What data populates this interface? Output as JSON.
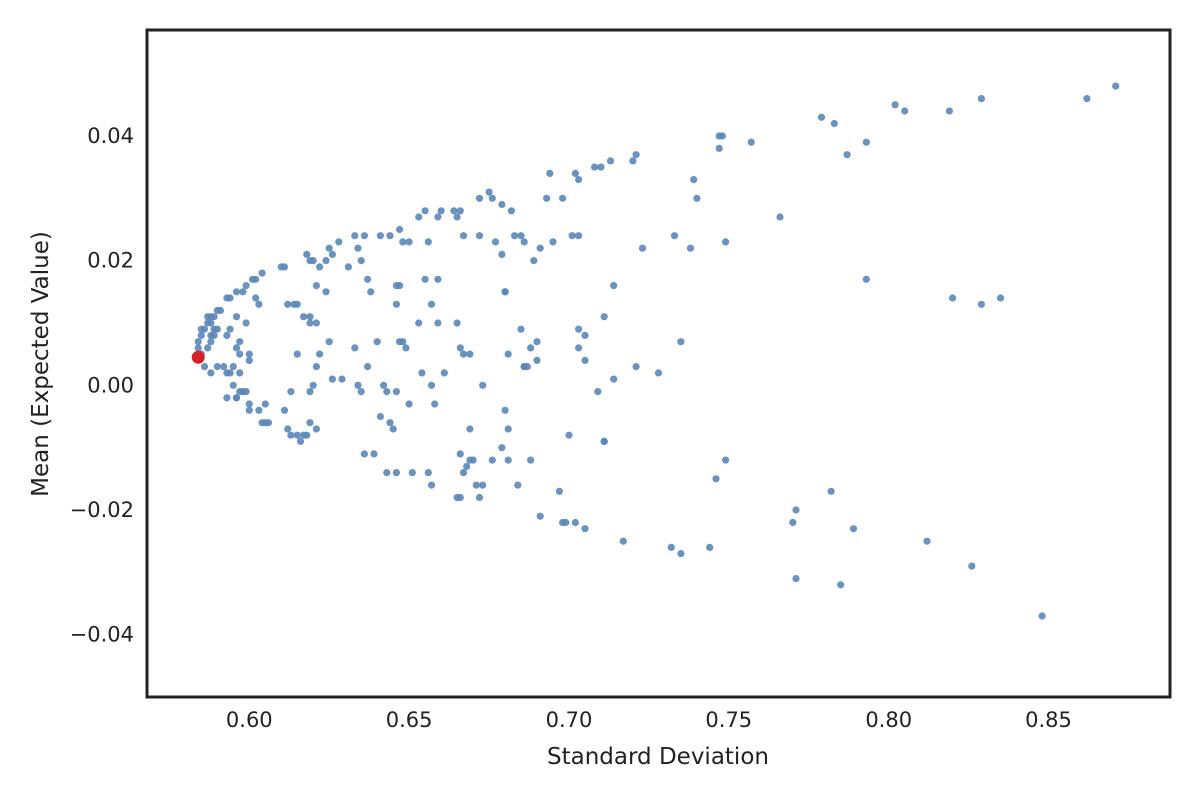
{
  "chart_data": {
    "type": "scatter",
    "title": "",
    "xlabel": "Standard Deviation",
    "ylabel": "Mean (Expected Value)",
    "xlim": [
      0.568,
      0.888
    ],
    "ylim": [
      -0.05,
      0.057
    ],
    "x_ticks": [
      0.6,
      0.65,
      0.7,
      0.75,
      0.8,
      0.85
    ],
    "x_tick_labels": [
      "0.60",
      "0.65",
      "0.70",
      "0.75",
      "0.80",
      "0.85"
    ],
    "y_ticks": [
      -0.04,
      -0.02,
      0.0,
      0.02,
      0.04
    ],
    "y_tick_labels": [
      "−0.04",
      "−0.02",
      "0.00",
      "0.02",
      "0.04"
    ],
    "grid": false,
    "legend": "none",
    "colors": {
      "points": "#5b87b8",
      "highlight": "#d62027",
      "frame": "#222222",
      "text": "#222222"
    },
    "series": [
      {
        "values": [
          [
            0.871,
            0.048
          ],
          [
            0.862,
            0.046
          ],
          [
            0.829,
            0.046
          ],
          [
            0.819,
            0.044
          ],
          [
            0.805,
            0.044
          ],
          [
            0.802,
            0.045
          ],
          [
            0.779,
            0.043
          ],
          [
            0.783,
            0.042
          ],
          [
            0.787,
            0.037
          ],
          [
            0.793,
            0.039
          ],
          [
            0.757,
            0.039
          ],
          [
            0.747,
            0.04
          ],
          [
            0.748,
            0.04
          ],
          [
            0.747,
            0.038
          ],
          [
            0.721,
            0.037
          ],
          [
            0.72,
            0.036
          ],
          [
            0.713,
            0.036
          ],
          [
            0.71,
            0.035
          ],
          [
            0.708,
            0.035
          ],
          [
            0.702,
            0.034
          ],
          [
            0.703,
            0.033
          ],
          [
            0.694,
            0.034
          ],
          [
            0.739,
            0.033
          ],
          [
            0.74,
            0.03
          ],
          [
            0.766,
            0.027
          ],
          [
            0.698,
            0.03
          ],
          [
            0.693,
            0.03
          ],
          [
            0.682,
            0.028
          ],
          [
            0.679,
            0.029
          ],
          [
            0.675,
            0.031
          ],
          [
            0.676,
            0.03
          ],
          [
            0.672,
            0.03
          ],
          [
            0.666,
            0.028
          ],
          [
            0.664,
            0.028
          ],
          [
            0.665,
            0.027
          ],
          [
            0.66,
            0.028
          ],
          [
            0.659,
            0.027
          ],
          [
            0.655,
            0.028
          ],
          [
            0.653,
            0.027
          ],
          [
            0.683,
            0.024
          ],
          [
            0.685,
            0.024
          ],
          [
            0.686,
            0.023
          ],
          [
            0.691,
            0.022
          ],
          [
            0.695,
            0.023
          ],
          [
            0.701,
            0.024
          ],
          [
            0.703,
            0.024
          ],
          [
            0.667,
            0.024
          ],
          [
            0.672,
            0.024
          ],
          [
            0.677,
            0.023
          ],
          [
            0.679,
            0.021
          ],
          [
            0.689,
            0.02
          ],
          [
            0.723,
            0.022
          ],
          [
            0.733,
            0.024
          ],
          [
            0.738,
            0.022
          ],
          [
            0.749,
            0.023
          ],
          [
            0.656,
            0.023
          ],
          [
            0.647,
            0.025
          ],
          [
            0.648,
            0.023
          ],
          [
            0.65,
            0.023
          ],
          [
            0.644,
            0.024
          ],
          [
            0.641,
            0.024
          ],
          [
            0.636,
            0.024
          ],
          [
            0.633,
            0.024
          ],
          [
            0.634,
            0.022
          ],
          [
            0.635,
            0.02
          ],
          [
            0.628,
            0.023
          ],
          [
            0.625,
            0.022
          ],
          [
            0.626,
            0.021
          ],
          [
            0.624,
            0.02
          ],
          [
            0.62,
            0.02
          ],
          [
            0.618,
            0.021
          ],
          [
            0.619,
            0.02
          ],
          [
            0.622,
            0.019
          ],
          [
            0.631,
            0.019
          ],
          [
            0.611,
            0.019
          ],
          [
            0.61,
            0.019
          ],
          [
            0.604,
            0.018
          ],
          [
            0.602,
            0.017
          ],
          [
            0.601,
            0.017
          ],
          [
            0.599,
            0.016
          ],
          [
            0.637,
            0.017
          ],
          [
            0.638,
            0.015
          ],
          [
            0.646,
            0.016
          ],
          [
            0.647,
            0.016
          ],
          [
            0.655,
            0.017
          ],
          [
            0.659,
            0.017
          ],
          [
            0.68,
            0.015
          ],
          [
            0.68,
            0.015
          ],
          [
            0.714,
            0.016
          ],
          [
            0.793,
            0.017
          ],
          [
            0.82,
            0.014
          ],
          [
            0.829,
            0.013
          ],
          [
            0.835,
            0.014
          ],
          [
            0.621,
            0.016
          ],
          [
            0.624,
            0.015
          ],
          [
            0.614,
            0.013
          ],
          [
            0.615,
            0.013
          ],
          [
            0.612,
            0.013
          ],
          [
            0.602,
            0.014
          ],
          [
            0.603,
            0.013
          ],
          [
            0.598,
            0.015
          ],
          [
            0.596,
            0.015
          ],
          [
            0.594,
            0.014
          ],
          [
            0.593,
            0.014
          ],
          [
            0.591,
            0.012
          ],
          [
            0.59,
            0.012
          ],
          [
            0.589,
            0.011
          ],
          [
            0.588,
            0.011
          ],
          [
            0.587,
            0.01
          ],
          [
            0.586,
            0.009
          ],
          [
            0.585,
            0.009
          ],
          [
            0.585,
            0.008
          ],
          [
            0.584,
            0.007
          ],
          [
            0.584,
            0.006
          ],
          [
            0.585,
            0.005
          ],
          [
            0.587,
            0.011
          ],
          [
            0.588,
            0.01
          ],
          [
            0.589,
            0.009
          ],
          [
            0.59,
            0.009
          ],
          [
            0.588,
            0.008
          ],
          [
            0.588,
            0.007
          ],
          [
            0.587,
            0.006
          ],
          [
            0.589,
            0.008
          ],
          [
            0.593,
            0.008
          ],
          [
            0.594,
            0.009
          ],
          [
            0.596,
            0.011
          ],
          [
            0.599,
            0.01
          ],
          [
            0.597,
            0.007
          ],
          [
            0.596,
            0.006
          ],
          [
            0.597,
            0.005
          ],
          [
            0.6,
            0.005
          ],
          [
            0.6,
            0.004
          ],
          [
            0.617,
            0.011
          ],
          [
            0.619,
            0.011
          ],
          [
            0.621,
            0.01
          ],
          [
            0.619,
            0.01
          ],
          [
            0.615,
            0.005
          ],
          [
            0.621,
            0.003
          ],
          [
            0.622,
            0.005
          ],
          [
            0.625,
            0.007
          ],
          [
            0.633,
            0.006
          ],
          [
            0.64,
            0.007
          ],
          [
            0.646,
            0.013
          ],
          [
            0.647,
            0.007
          ],
          [
            0.648,
            0.007
          ],
          [
            0.649,
            0.006
          ],
          [
            0.653,
            0.01
          ],
          [
            0.657,
            0.013
          ],
          [
            0.659,
            0.01
          ],
          [
            0.665,
            0.01
          ],
          [
            0.666,
            0.006
          ],
          [
            0.667,
            0.005
          ],
          [
            0.669,
            0.005
          ],
          [
            0.685,
            0.009
          ],
          [
            0.687,
            0.003
          ],
          [
            0.688,
            0.006
          ],
          [
            0.681,
            0.005
          ],
          [
            0.69,
            0.007
          ],
          [
            0.69,
            0.004
          ],
          [
            0.686,
            0.003
          ],
          [
            0.703,
            0.009
          ],
          [
            0.705,
            0.008
          ],
          [
            0.703,
            0.006
          ],
          [
            0.705,
            0.004
          ],
          [
            0.711,
            0.011
          ],
          [
            0.721,
            0.003
          ],
          [
            0.728,
            0.002
          ],
          [
            0.735,
            0.007
          ],
          [
            0.714,
            0.001
          ],
          [
            0.709,
            -0.001
          ],
          [
            0.686,
            0.003
          ],
          [
            0.673,
            0.0
          ],
          [
            0.661,
            0.002
          ],
          [
            0.654,
            0.002
          ],
          [
            0.657,
            0.0
          ],
          [
            0.658,
            -0.003
          ],
          [
            0.65,
            -0.003
          ],
          [
            0.646,
            -0.001
          ],
          [
            0.643,
            -0.001
          ],
          [
            0.642,
            0.0
          ],
          [
            0.637,
            0.003
          ],
          [
            0.634,
            0.0
          ],
          [
            0.635,
            -0.001
          ],
          [
            0.629,
            0.001
          ],
          [
            0.626,
            0.001
          ],
          [
            0.62,
            0.0
          ],
          [
            0.619,
            -0.001
          ],
          [
            0.613,
            -0.001
          ],
          [
            0.605,
            -0.003
          ],
          [
            0.603,
            -0.004
          ],
          [
            0.6,
            -0.003
          ],
          [
            0.6,
            -0.004
          ],
          [
            0.599,
            -0.001
          ],
          [
            0.597,
            -0.001
          ],
          [
            0.596,
            -0.002
          ],
          [
            0.595,
            0.0
          ],
          [
            0.593,
            0.002
          ],
          [
            0.592,
            0.003
          ],
          [
            0.594,
            0.002
          ],
          [
            0.595,
            0.003
          ],
          [
            0.597,
            0.002
          ],
          [
            0.593,
            -0.002
          ],
          [
            0.596,
            -0.002
          ],
          [
            0.598,
            -0.001
          ],
          [
            0.59,
            0.003
          ],
          [
            0.588,
            0.002
          ],
          [
            0.586,
            0.003
          ],
          [
            0.604,
            -0.006
          ],
          [
            0.605,
            -0.006
          ],
          [
            0.606,
            -0.006
          ],
          [
            0.611,
            -0.004
          ],
          [
            0.612,
            -0.007
          ],
          [
            0.613,
            -0.008
          ],
          [
            0.615,
            -0.008
          ],
          [
            0.616,
            -0.009
          ],
          [
            0.617,
            -0.008
          ],
          [
            0.618,
            -0.008
          ],
          [
            0.619,
            -0.006
          ],
          [
            0.621,
            -0.007
          ],
          [
            0.641,
            -0.005
          ],
          [
            0.644,
            -0.006
          ],
          [
            0.645,
            -0.007
          ],
          [
            0.636,
            -0.011
          ],
          [
            0.639,
            -0.011
          ],
          [
            0.643,
            -0.014
          ],
          [
            0.646,
            -0.014
          ],
          [
            0.651,
            -0.014
          ],
          [
            0.656,
            -0.014
          ],
          [
            0.657,
            -0.016
          ],
          [
            0.665,
            -0.018
          ],
          [
            0.666,
            -0.018
          ],
          [
            0.666,
            -0.011
          ],
          [
            0.667,
            -0.014
          ],
          [
            0.668,
            -0.013
          ],
          [
            0.669,
            -0.007
          ],
          [
            0.669,
            -0.012
          ],
          [
            0.67,
            -0.012
          ],
          [
            0.671,
            -0.016
          ],
          [
            0.672,
            -0.018
          ],
          [
            0.673,
            -0.016
          ],
          [
            0.676,
            -0.012
          ],
          [
            0.679,
            -0.01
          ],
          [
            0.68,
            -0.004
          ],
          [
            0.681,
            -0.007
          ],
          [
            0.681,
            -0.012
          ],
          [
            0.684,
            -0.016
          ],
          [
            0.688,
            -0.012
          ],
          [
            0.691,
            -0.021
          ],
          [
            0.697,
            -0.017
          ],
          [
            0.698,
            -0.022
          ],
          [
            0.699,
            -0.022
          ],
          [
            0.7,
            -0.008
          ],
          [
            0.702,
            -0.022
          ],
          [
            0.705,
            -0.023
          ],
          [
            0.711,
            -0.009
          ],
          [
            0.711,
            -0.009
          ],
          [
            0.717,
            -0.025
          ],
          [
            0.732,
            -0.026
          ],
          [
            0.735,
            -0.027
          ],
          [
            0.744,
            -0.026
          ],
          [
            0.746,
            -0.015
          ],
          [
            0.749,
            -0.012
          ],
          [
            0.77,
            -0.022
          ],
          [
            0.771,
            -0.02
          ],
          [
            0.771,
            -0.031
          ],
          [
            0.782,
            -0.017
          ],
          [
            0.785,
            -0.032
          ],
          [
            0.789,
            -0.023
          ],
          [
            0.812,
            -0.025
          ],
          [
            0.826,
            -0.029
          ],
          [
            0.848,
            -0.037
          ]
        ]
      },
      {
        "values": [
          [
            0.584,
            0.0045
          ]
        ]
      }
    ]
  }
}
